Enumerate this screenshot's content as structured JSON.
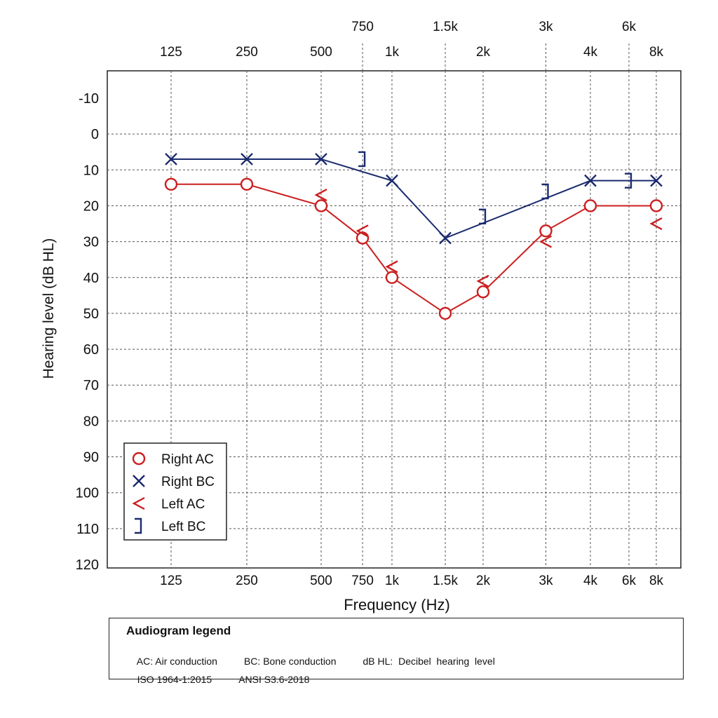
{
  "chart_data": {
    "type": "line",
    "xlabel": "Frequency (Hz)",
    "ylabel": "Hearing level (dB HL)",
    "x_scale": "log",
    "ylim": [
      -10,
      120
    ],
    "y_inverted": true,
    "grid": true,
    "x_ticks": [
      {
        "freq": 125,
        "label": "125"
      },
      {
        "freq": 250,
        "label": "250"
      },
      {
        "freq": 500,
        "label": "500"
      },
      {
        "freq": 750,
        "label": "750"
      },
      {
        "freq": 1000,
        "label": "1k"
      },
      {
        "freq": 1500,
        "label": "1.5k"
      },
      {
        "freq": 2000,
        "label": "2k"
      },
      {
        "freq": 3000,
        "label": "3k"
      },
      {
        "freq": 4000,
        "label": "4k"
      },
      {
        "freq": 6000,
        "label": "6k"
      },
      {
        "freq": 8000,
        "label": "8k"
      }
    ],
    "top_ticks_main": [
      {
        "freq": 125,
        "label": "125"
      },
      {
        "freq": 250,
        "label": "250"
      },
      {
        "freq": 500,
        "label": "500"
      },
      {
        "freq": 1000,
        "label": "1k"
      },
      {
        "freq": 2000,
        "label": "2k"
      },
      {
        "freq": 4000,
        "label": "4k"
      },
      {
        "freq": 8000,
        "label": "8k"
      }
    ],
    "top_ticks_inter": [
      {
        "freq": 750,
        "label": "750"
      },
      {
        "freq": 1500,
        "label": "1.5k"
      },
      {
        "freq": 3000,
        "label": "3k"
      },
      {
        "freq": 6000,
        "label": "6k"
      }
    ],
    "y_ticks": [
      -10,
      0,
      10,
      20,
      30,
      40,
      50,
      60,
      70,
      80,
      90,
      100,
      110,
      120
    ],
    "series": [
      {
        "name": "Right AC",
        "symbol": "circle",
        "color": "#cc1f1f",
        "connected": true,
        "x": [
          125,
          250,
          500,
          750,
          1000,
          1500,
          2000,
          3000,
          4000,
          8000
        ],
        "y": [
          14,
          14,
          20,
          29,
          40,
          50,
          44,
          27,
          20,
          20
        ]
      },
      {
        "name": "Right BC",
        "symbol": "cross",
        "color": "#1a2a6e",
        "connected": true,
        "x": [
          125,
          250,
          500,
          1000,
          1500,
          4000,
          8000
        ],
        "y": [
          7,
          7,
          7,
          13,
          29,
          13,
          13
        ]
      },
      {
        "name": "Left AC",
        "symbol": "angle",
        "color": "#cc1f1f",
        "connected": false,
        "x": [
          500,
          750,
          1000,
          2000,
          3000,
          8000
        ],
        "y": [
          17,
          27,
          37,
          41,
          30,
          25
        ]
      },
      {
        "name": "Left BC",
        "symbol": "bracket",
        "color": "#1a2a6e",
        "connected": false,
        "x": [
          750,
          2000,
          3000,
          6000
        ],
        "y": [
          7,
          23,
          16,
          13
        ]
      }
    ]
  },
  "legend_box": {
    "title": "Audiogram legend",
    "line1": [
      "AC: Air conduction",
      "BC: Bone conduction",
      "dB HL:  Decibel  hearing  level"
    ],
    "line2": [
      "ISO 1964-1:2015",
      "ANSI S3.6-2018"
    ]
  },
  "colors": {
    "red": "#cc1f1f",
    "navy": "#1a2a6e",
    "grid": "#555555"
  }
}
